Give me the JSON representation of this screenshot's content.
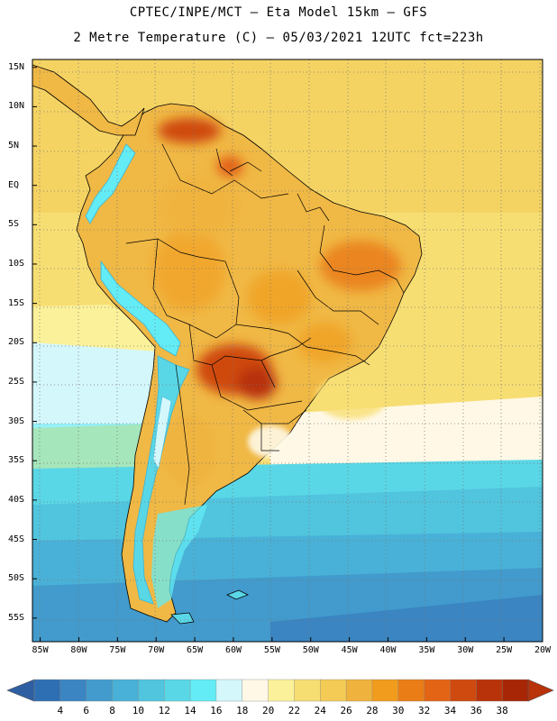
{
  "title": {
    "line1": "CPTEC/INPE/MCT –  Eta Model 15km – GFS",
    "line2": "2 Metre Temperature (C) – 05/03/2021 12UTC fct=223h"
  },
  "map": {
    "latitude_labels": [
      "15N",
      "10N",
      "5N",
      "EQ",
      "5S",
      "10S",
      "15S",
      "20S",
      "25S",
      "30S",
      "35S",
      "40S",
      "45S",
      "50S",
      "55S"
    ],
    "longitude_labels": [
      "85W",
      "80W",
      "75W",
      "70W",
      "65W",
      "60W",
      "55W",
      "50W",
      "45W",
      "40W",
      "35W",
      "30W",
      "25W",
      "20W"
    ],
    "extent": {
      "lon_min": -86,
      "lon_max": -20,
      "lat_min": -58,
      "lat_max": 16
    }
  },
  "colorbar": {
    "labels": [
      "4",
      "6",
      "8",
      "10",
      "12",
      "14",
      "16",
      "18",
      "20",
      "22",
      "24",
      "26",
      "28",
      "30",
      "32",
      "34",
      "36",
      "38"
    ],
    "colors": [
      "#2e6fb4",
      "#3a85c2",
      "#429bcc",
      "#49b1d7",
      "#51c4de",
      "#5ad7e6",
      "#63ecf5",
      "#d4f7fc",
      "#fff8e6",
      "#fbf19a",
      "#f7de73",
      "#f3cb55",
      "#efb23c",
      "#f19c1c",
      "#ea7d16",
      "#e36414",
      "#cf4a0f",
      "#b8320a",
      "#a62606"
    ],
    "low_arrow_color": "#2e5fa2",
    "high_arrow_color": "#b8320a"
  }
}
